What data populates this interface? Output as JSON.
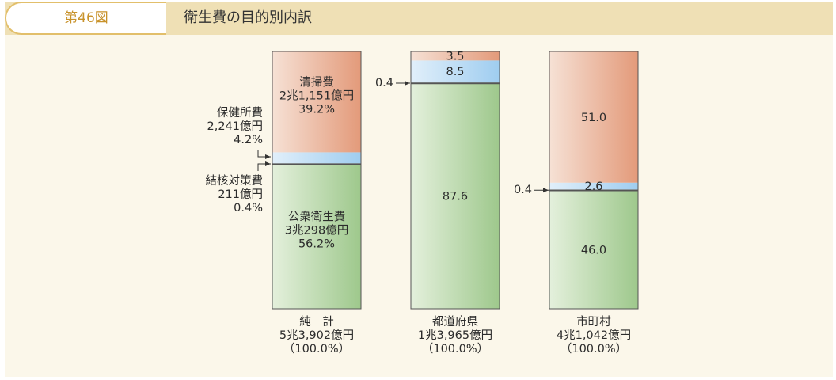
{
  "header": {
    "figure_number": "第46図",
    "title": "衛生費の目的別内訳"
  },
  "colors": {
    "public_health": "#b9d8ab",
    "health_center": "#bcdcf3",
    "tb": "#cfe3f0",
    "cleaning": "#efc3ae",
    "separator": "#555555"
  },
  "chart_data": {
    "type": "bar",
    "stacked": true,
    "title": "衛生費の目的別内訳",
    "ylim": [
      0,
      100
    ],
    "categories": [
      "純 計",
      "都道府県",
      "市町村"
    ],
    "category_labels": [
      {
        "name": "純　計",
        "amount": "5兆3,902億円",
        "pct": "（100.0%）"
      },
      {
        "name": "都道府県",
        "amount": "1兆3,965億円",
        "pct": "（100.0%）"
      },
      {
        "name": "市町村",
        "amount": "4兆1,042億円",
        "pct": "（100.0%）"
      }
    ],
    "series": [
      {
        "name": "公衆衛生費",
        "values": [
          56.2,
          87.6,
          46.0
        ]
      },
      {
        "name": "結核対策費",
        "values": [
          0.4,
          0.4,
          0.4
        ]
      },
      {
        "name": "保健所費",
        "values": [
          4.2,
          8.5,
          2.6
        ]
      },
      {
        "name": "清掃費",
        "values": [
          39.2,
          3.5,
          51.0
        ]
      }
    ],
    "value_labels": [
      [
        "公衆衛生費",
        "3兆298億円",
        "56.2%"
      ],
      null,
      null,
      [
        "清掃費",
        "2兆1,151億円",
        "39.2%"
      ],
      [
        "87.6"
      ],
      [
        "0.4"
      ],
      [
        "8.5"
      ],
      [
        "3.5"
      ],
      [
        "46.0"
      ],
      [
        "0.4"
      ],
      [
        "2.6"
      ],
      [
        "51.0"
      ]
    ],
    "annotations": {
      "health_center": [
        "保健所費",
        "2,241億円",
        "4.2%"
      ],
      "tb": [
        "結核対策費",
        "211億円",
        "0.4%"
      ]
    }
  }
}
